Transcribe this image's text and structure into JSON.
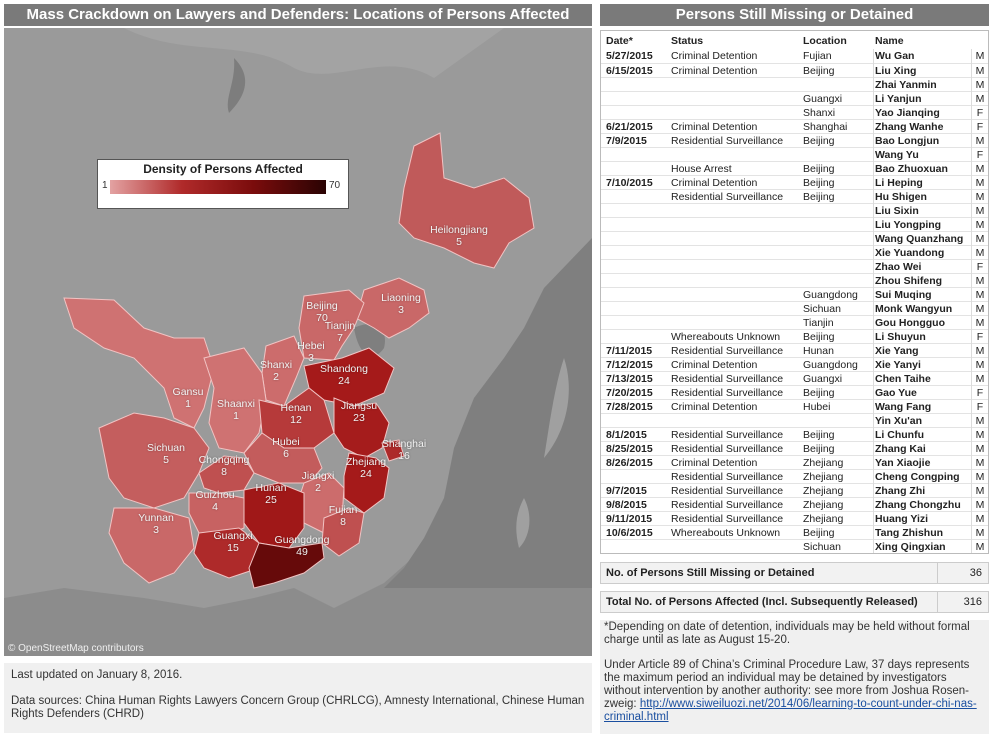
{
  "map_title": "Mass Crackdown on Lawyers and Defenders: Locations of Persons Affected",
  "table_title": "Persons Still Missing or Detained",
  "legend": {
    "title": "Density of Persons Affected",
    "min": "1",
    "max": "70"
  },
  "credit": "© OpenStreetMap contributors",
  "provinces": [
    {
      "name": "Heilongjiang",
      "count": "5",
      "color": "#c05a5a"
    },
    {
      "name": "Beijing",
      "count": "70",
      "color": "#3a0505"
    },
    {
      "name": "Tianjin",
      "count": "7",
      "color": "#c25a5a"
    },
    {
      "name": "Liaoning",
      "count": "3",
      "color": "#c96868"
    },
    {
      "name": "Hebei",
      "count": "3",
      "color": "#c96868"
    },
    {
      "name": "Shanxi",
      "count": "2",
      "color": "#cc6c6c"
    },
    {
      "name": "Shandong",
      "count": "24",
      "color": "#a51a1a"
    },
    {
      "name": "Gansu",
      "count": "1",
      "color": "#cf7272"
    },
    {
      "name": "Shaanxi",
      "count": "1",
      "color": "#cf7272"
    },
    {
      "name": "Henan",
      "count": "12",
      "color": "#b63a3a"
    },
    {
      "name": "Jiangsu",
      "count": "23",
      "color": "#a51c1c"
    },
    {
      "name": "Shanghai",
      "count": "16",
      "color": "#ad2a2a"
    },
    {
      "name": "Sichuan",
      "count": "5",
      "color": "#c45e5e"
    },
    {
      "name": "Hubei",
      "count": "6",
      "color": "#c35c5c"
    },
    {
      "name": "Chongqing",
      "count": "8",
      "color": "#bf5050"
    },
    {
      "name": "Jiangxi",
      "count": "2",
      "color": "#cc6c6c"
    },
    {
      "name": "Zhejiang",
      "count": "24",
      "color": "#a51a1a"
    },
    {
      "name": "Hunan",
      "count": "25",
      "color": "#a01818"
    },
    {
      "name": "Guizhou",
      "count": "4",
      "color": "#c76262"
    },
    {
      "name": "Fujian",
      "count": "8",
      "color": "#bf5050"
    },
    {
      "name": "Yunnan",
      "count": "3",
      "color": "#c96868"
    },
    {
      "name": "Guangxi",
      "count": "15",
      "color": "#ae2a2a"
    },
    {
      "name": "Guangdong",
      "count": "49",
      "color": "#660a0a"
    }
  ],
  "table": {
    "headers": {
      "date": "Date*",
      "status": "Status",
      "location": "Location",
      "name": "Name"
    },
    "rows": [
      {
        "date": "5/27/2015",
        "status": "Criminal Detention",
        "loc": "Fujian",
        "name": "Wu Gan",
        "g": "M"
      },
      {
        "date": "6/15/2015",
        "status": "Criminal Detention",
        "loc": "Beijing",
        "name": "Liu Xing",
        "g": "M"
      },
      {
        "date": "",
        "status": "",
        "loc": "",
        "name": "Zhai Yanmin",
        "g": "M"
      },
      {
        "date": "",
        "status": "",
        "loc": "Guangxi",
        "name": "Li Yanjun",
        "g": "M"
      },
      {
        "date": "",
        "status": "",
        "loc": "Shanxi",
        "name": "Yao Jianqing",
        "g": "F"
      },
      {
        "date": "6/21/2015",
        "status": "Criminal Detention",
        "loc": "Shanghai",
        "name": "Zhang Wanhe",
        "g": "F"
      },
      {
        "date": "7/9/2015",
        "status": "Residential Surveillance",
        "loc": "Beijing",
        "name": "Bao Longjun",
        "g": "M"
      },
      {
        "date": "",
        "status": "",
        "loc": "",
        "name": "Wang Yu",
        "g": "F"
      },
      {
        "date": "",
        "status": "House Arrest",
        "loc": "Beijing",
        "name": "Bao Zhuoxuan",
        "g": "M"
      },
      {
        "date": "7/10/2015",
        "status": "Criminal Detention",
        "loc": "Beijing",
        "name": "Li Heping",
        "g": "M"
      },
      {
        "date": "",
        "status": "Residential Surveillance",
        "loc": "Beijing",
        "name": "Hu Shigen",
        "g": "M"
      },
      {
        "date": "",
        "status": "",
        "loc": "",
        "name": "Liu Sixin",
        "g": "M"
      },
      {
        "date": "",
        "status": "",
        "loc": "",
        "name": "Liu Yongping",
        "g": "M"
      },
      {
        "date": "",
        "status": "",
        "loc": "",
        "name": "Wang Quanzhang",
        "g": "M"
      },
      {
        "date": "",
        "status": "",
        "loc": "",
        "name": "Xie Yuandong",
        "g": "M"
      },
      {
        "date": "",
        "status": "",
        "loc": "",
        "name": "Zhao Wei",
        "g": "F"
      },
      {
        "date": "",
        "status": "",
        "loc": "",
        "name": "Zhou Shifeng",
        "g": "M"
      },
      {
        "date": "",
        "status": "",
        "loc": "Guangdong",
        "name": "Sui Muqing",
        "g": "M"
      },
      {
        "date": "",
        "status": "",
        "loc": "Sichuan",
        "name": "Monk Wangyun",
        "g": "M"
      },
      {
        "date": "",
        "status": "",
        "loc": "Tianjin",
        "name": "Gou Hongguo",
        "g": "M"
      },
      {
        "date": "",
        "status": "Whereabouts Unknown",
        "loc": "Beijing",
        "name": "Li Shuyun",
        "g": "F"
      },
      {
        "date": "7/11/2015",
        "status": "Residential Surveillance",
        "loc": "Hunan",
        "name": "Xie Yang",
        "g": "M"
      },
      {
        "date": "7/12/2015",
        "status": "Criminal Detention",
        "loc": "Guangdong",
        "name": "Xie Yanyi",
        "g": "M"
      },
      {
        "date": "7/13/2015",
        "status": "Residential Surveillance",
        "loc": "Guangxi",
        "name": "Chen Taihe",
        "g": "M"
      },
      {
        "date": "7/20/2015",
        "status": "Residential Surveillance",
        "loc": "Beijing",
        "name": "Gao Yue",
        "g": "F"
      },
      {
        "date": "7/28/2015",
        "status": "Criminal Detention",
        "loc": "Hubei",
        "name": "Wang Fang",
        "g": "F"
      },
      {
        "date": "",
        "status": "",
        "loc": "",
        "name": "Yin Xu'an",
        "g": "M"
      },
      {
        "date": "8/1/2015",
        "status": "Residential Surveillance",
        "loc": "Beijing",
        "name": "Li Chunfu",
        "g": "M"
      },
      {
        "date": "8/25/2015",
        "status": "Residential Surveillance",
        "loc": "Beijing",
        "name": "Zhang Kai",
        "g": "M"
      },
      {
        "date": "8/26/2015",
        "status": "Criminal Detention",
        "loc": "Zhejiang",
        "name": "Yan Xiaojie",
        "g": "M"
      },
      {
        "date": "",
        "status": "Residential Surveillance",
        "loc": "Zhejiang",
        "name": "Cheng Congping",
        "g": "M"
      },
      {
        "date": "9/7/2015",
        "status": "Residential Surveillance",
        "loc": "Zhejiang",
        "name": "Zhang Zhi",
        "g": "M"
      },
      {
        "date": "9/8/2015",
        "status": "Residential Surveillance",
        "loc": "Zhejiang",
        "name": "Zhang Chongzhu",
        "g": "M"
      },
      {
        "date": "9/11/2015",
        "status": "Residential Surveillance",
        "loc": "Zhejiang",
        "name": "Huang Yizi",
        "g": "M"
      },
      {
        "date": "10/6/2015",
        "status": "Whereabouts Unknown",
        "loc": "Beijing",
        "name": "Tang Zhishun",
        "g": "M"
      },
      {
        "date": "",
        "status": "",
        "loc": "Sichuan",
        "name": "Xing Qingxian",
        "g": "M"
      }
    ]
  },
  "summary": {
    "missing_label": "No. of Persons Still Missing or Detained",
    "missing_value": "36",
    "total_label": "Total No. of Persons Affected (Incl. Subsequently Released)",
    "total_value": "316"
  },
  "footer": {
    "updated": "Last updated on January 8, 2016.",
    "sources": "Data sources: China Human Rights Lawyers Concern Group (CHRLCG), Amnesty International, Chinese Human Rights Defenders (CHRD)"
  },
  "notes": {
    "note1": "*Depending on date of detention, individuals may be held without formal charge until as late as August 15-20.",
    "note2": "Under Article 89 of China’s Criminal Procedure Law, 37 days represents the maximum period an individual may be detained by investigators without intervention by another authority: see more from Joshua Rosen-zweig:",
    "link": "http://www.siweiluozi.net/2014/06/learning-to-count-under-chi-nas-criminal.html"
  }
}
